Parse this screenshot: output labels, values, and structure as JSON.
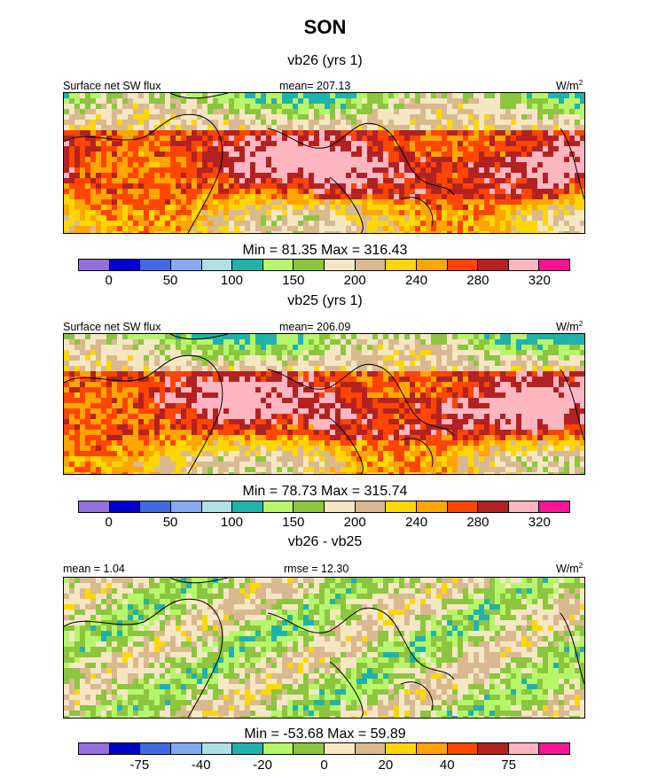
{
  "title": "SON",
  "colors": [
    "#9370db",
    "#0000cd",
    "#4169e1",
    "#87a9f0",
    "#b0e0e6",
    "#20b2aa",
    "#b7f56a",
    "#8cc63f",
    "#f5e6c4",
    "#d9b98f",
    "#ffd700",
    "#ffa500",
    "#ff4500",
    "#b22222",
    "#ffb6c1",
    "#ff1493"
  ],
  "panels": [
    {
      "title": "vb26 (yrs 1)",
      "left_label": "Surface net SW flux",
      "center_label": "mean= 207.13",
      "units": "W/m",
      "units_sup": "2",
      "minmax": "Min =  81.35 Max = 316.43",
      "colorbar_labels": [
        "0",
        "50",
        "100",
        "150",
        "200",
        "240",
        "280",
        "320"
      ],
      "type": "abs"
    },
    {
      "title": "vb25 (yrs 1)",
      "left_label": "Surface net SW flux",
      "center_label": "mean= 206.09",
      "units": "W/m",
      "units_sup": "2",
      "minmax": "Min =  78.73 Max = 315.74",
      "colorbar_labels": [
        "0",
        "50",
        "100",
        "150",
        "200",
        "240",
        "280",
        "320"
      ],
      "type": "abs"
    },
    {
      "title": "vb26 - vb25",
      "left_label": "mean =   1.04",
      "center_label": "rmse =  12.30",
      "units": "W/m",
      "units_sup": "2",
      "minmax": "Min = -53.68 Max =  59.89",
      "colorbar_labels": [
        "-75",
        "-40",
        "-20",
        "0",
        "20",
        "40",
        "75"
      ],
      "type": "diff"
    }
  ]
}
